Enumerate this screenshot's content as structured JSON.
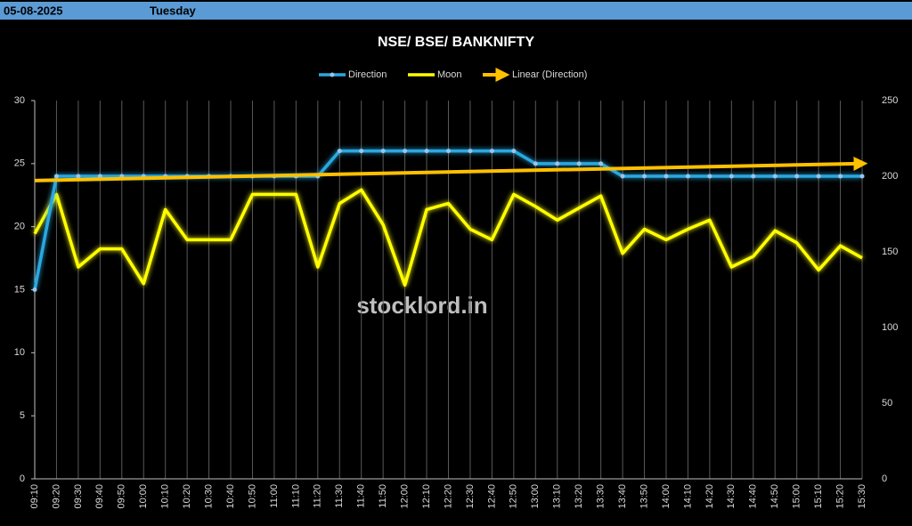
{
  "header": {
    "date": "05-08-2025",
    "day": "Tuesday"
  },
  "chart_data": {
    "type": "line",
    "title": "NSE/ BSE/ BANKNIFTY",
    "watermark": "stocklord.in",
    "categories": [
      "09:10",
      "09:20",
      "09:30",
      "09:40",
      "09:50",
      "10:00",
      "10:10",
      "10:20",
      "10:30",
      "10:40",
      "10:50",
      "11:00",
      "11:10",
      "11:20",
      "11:30",
      "11:40",
      "11:50",
      "12:00",
      "12:10",
      "12:20",
      "12:30",
      "12:40",
      "12:50",
      "13:00",
      "13:10",
      "13:20",
      "13:30",
      "13:40",
      "13:50",
      "14:00",
      "14:10",
      "14:20",
      "14:30",
      "14:40",
      "14:50",
      "15:00",
      "15:10",
      "15:20",
      "15:30"
    ],
    "series": [
      {
        "name": "Direction",
        "color": "#29a8e0",
        "axis": "y",
        "values": [
          15,
          24,
          24,
          24,
          24,
          24,
          24,
          24,
          24,
          24,
          24,
          24,
          24,
          24,
          26,
          26,
          26,
          26,
          26,
          26,
          26,
          26,
          26,
          25,
          25,
          25,
          25,
          24,
          24,
          24,
          24,
          24,
          24,
          24,
          24,
          24,
          24,
          24,
          24
        ]
      },
      {
        "name": "Moon",
        "color": "#ffff00",
        "axis": "y2",
        "values": [
          162,
          188,
          140,
          152,
          152,
          129,
          178,
          158,
          158,
          158,
          188,
          188,
          188,
          140,
          182,
          191,
          168,
          128,
          178,
          182,
          165,
          158,
          188,
          180,
          171,
          179,
          187,
          149,
          165,
          158,
          165,
          171,
          140,
          147,
          164,
          156,
          138,
          154,
          146
        ]
      }
    ],
    "trendline": {
      "name": "Linear (Direction)",
      "color": "#ffc000",
      "of": 0
    },
    "ylim": [
      0,
      30
    ],
    "yticks": [
      0,
      5,
      10,
      15,
      20,
      25,
      30
    ],
    "y2lim": [
      0,
      250
    ],
    "y2ticks": [
      0,
      50,
      100,
      150,
      200,
      250
    ],
    "grid": "x"
  }
}
